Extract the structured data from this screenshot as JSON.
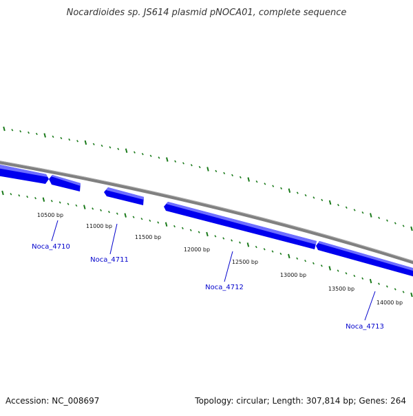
{
  "title": "Nocardioides sp. JS614 plasmid pNOCA01, complete sequence",
  "footer": {
    "accession": "Accession: NC_008697",
    "summary": "Topology: circular; Length: 307,814 bp; Genes: 264"
  },
  "ticks": [
    "10500 bp",
    "11000 bp",
    "11500 bp",
    "12000 bp",
    "12500 bp",
    "13000 bp",
    "13500 bp",
    "14000 bp"
  ],
  "genes": [
    {
      "name": "Noca_4710"
    },
    {
      "name": "Noca_4711"
    },
    {
      "name": "Noca_4712"
    },
    {
      "name": "Noca_4713"
    }
  ],
  "colors": {
    "backbone": "#808080",
    "backbone_highlight": "#b0b0b0",
    "gene": "#0000ee",
    "gene_highlight": "#6e6eff",
    "ruler": "#1a7a1a",
    "gene_label": "#0000cc"
  }
}
